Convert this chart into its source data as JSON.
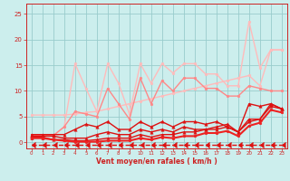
{
  "x": [
    0,
    1,
    2,
    3,
    4,
    5,
    6,
    7,
    8,
    9,
    10,
    11,
    12,
    13,
    14,
    15,
    16,
    17,
    18,
    19,
    20,
    21,
    22,
    23
  ],
  "lines": [
    {
      "y": [
        5.3,
        5.3,
        5.3,
        5.3,
        5.5,
        5.8,
        6.0,
        6.5,
        7.0,
        7.5,
        8.0,
        8.5,
        9.0,
        9.5,
        10.0,
        10.5,
        11.0,
        11.5,
        12.0,
        12.5,
        13.0,
        11.0,
        18.0,
        18.0
      ],
      "color": "#ffbbbb",
      "lw": 1.0,
      "marker": "o",
      "ms": 2.0,
      "linestyle": "-",
      "mew": 0.3
    },
    {
      "y": [
        1.3,
        1.3,
        1.3,
        3.0,
        15.3,
        10.5,
        6.0,
        15.3,
        11.5,
        5.5,
        15.3,
        11.5,
        15.3,
        13.5,
        15.3,
        15.3,
        13.3,
        13.3,
        11.0,
        11.0,
        23.5,
        14.5,
        18.0,
        18.0
      ],
      "color": "#ffbbbb",
      "lw": 1.0,
      "marker": "o",
      "ms": 2.0,
      "linestyle": "-",
      "mew": 0.3
    },
    {
      "y": [
        1.3,
        1.3,
        1.3,
        3.0,
        6.0,
        5.5,
        5.0,
        10.5,
        7.5,
        4.5,
        12.5,
        7.5,
        12.0,
        10.0,
        12.5,
        12.5,
        10.5,
        10.5,
        9.0,
        9.0,
        11.0,
        10.5,
        10.0,
        10.0
      ],
      "color": "#ff8888",
      "lw": 1.0,
      "marker": "o",
      "ms": 2.0,
      "linestyle": "-",
      "mew": 0.3
    },
    {
      "y": [
        1.5,
        1.5,
        1.5,
        1.5,
        2.5,
        3.5,
        3.0,
        4.0,
        2.5,
        2.5,
        4.0,
        3.0,
        4.0,
        3.0,
        4.0,
        4.0,
        3.5,
        4.0,
        3.0,
        2.0,
        7.5,
        7.0,
        7.5,
        6.5
      ],
      "color": "#dd1111",
      "lw": 1.0,
      "marker": "^",
      "ms": 2.5,
      "linestyle": "-",
      "mew": 0.3
    },
    {
      "y": [
        1.2,
        1.2,
        1.2,
        0.8,
        0.8,
        0.8,
        1.5,
        2.0,
        1.5,
        1.5,
        2.5,
        2.0,
        2.5,
        2.0,
        3.0,
        2.5,
        2.5,
        3.0,
        3.5,
        2.0,
        4.5,
        4.5,
        7.5,
        6.5
      ],
      "color": "#dd1111",
      "lw": 1.0,
      "marker": "^",
      "ms": 2.5,
      "linestyle": "-",
      "mew": 0.3
    },
    {
      "y": [
        1.0,
        1.0,
        0.5,
        0.5,
        0.3,
        0.3,
        0.5,
        0.8,
        0.8,
        0.8,
        1.5,
        1.0,
        1.5,
        1.5,
        2.0,
        2.0,
        2.5,
        2.5,
        3.0,
        2.0,
        4.0,
        4.5,
        7.0,
        6.5
      ],
      "color": "#dd1111",
      "lw": 1.0,
      "marker": "^",
      "ms": 2.5,
      "linestyle": "-",
      "mew": 0.3
    },
    {
      "y": [
        0.8,
        0.8,
        0.5,
        0.3,
        0.1,
        0.1,
        0.1,
        0.3,
        0.3,
        0.3,
        0.8,
        0.5,
        1.0,
        0.8,
        1.2,
        1.2,
        1.8,
        1.8,
        2.2,
        1.2,
        3.2,
        3.8,
        6.3,
        5.8
      ],
      "color": "#ee2222",
      "lw": 1.5,
      "marker": "o",
      "ms": 2.0,
      "linestyle": "-",
      "mew": 0.3
    },
    {
      "y": [
        -0.5,
        -0.5,
        -0.5,
        -0.5,
        -0.5,
        -0.5,
        -0.5,
        -0.5,
        -0.5,
        -0.5,
        -0.5,
        -0.5,
        -0.5,
        -0.5,
        -0.5,
        -0.5,
        -0.5,
        -0.5,
        -0.5,
        -0.5,
        -0.5,
        -0.5,
        -0.5,
        -0.5
      ],
      "color": "#dd1111",
      "lw": 1.0,
      "marker": 4,
      "ms": 4.0,
      "linestyle": "--",
      "mew": 0.8
    }
  ],
  "xlim": [
    -0.5,
    23.5
  ],
  "ylim": [
    -1.2,
    27
  ],
  "yticks": [
    0,
    5,
    10,
    15,
    20,
    25
  ],
  "xticks": [
    0,
    1,
    2,
    3,
    4,
    5,
    6,
    7,
    8,
    9,
    10,
    11,
    12,
    13,
    14,
    15,
    16,
    17,
    18,
    19,
    20,
    21,
    22,
    23
  ],
  "xlabel": "Vent moyen/en rafales ( km/h )",
  "bg_color": "#cceeed",
  "grid_color": "#99cccc",
  "axis_color": "#cc2222",
  "label_color": "#cc2222",
  "tick_color": "#cc2222"
}
